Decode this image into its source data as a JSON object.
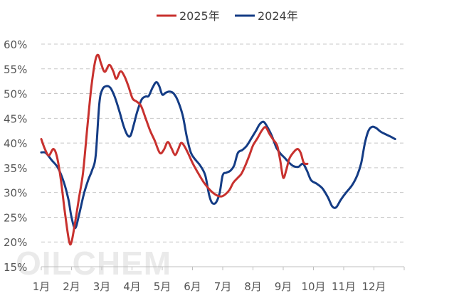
{
  "chart_data": {
    "type": "line",
    "title": "",
    "xlabel": "",
    "ylabel": "",
    "ylim": [
      15,
      60
    ],
    "y_tick_labels": [
      "15%",
      "20%",
      "25%",
      "30%",
      "35%",
      "40%",
      "45%",
      "50%",
      "55%",
      "60%"
    ],
    "categories": [
      "1月",
      "2月",
      "3月",
      "4月",
      "5月",
      "6月",
      "7月",
      "8月",
      "9月",
      "10月",
      "11月",
      "12月"
    ],
    "x_range": [
      0,
      12
    ],
    "grid": "horizontal dashed",
    "legend_position": "top-center",
    "watermark": "OILCHEM",
    "series": [
      {
        "name": "2025年",
        "color": "#C8312E",
        "points": [
          [
            0.0,
            40.8
          ],
          [
            0.12,
            38.8
          ],
          [
            0.25,
            37.5
          ],
          [
            0.4,
            38.8
          ],
          [
            0.52,
            37.2
          ],
          [
            0.65,
            32.5
          ],
          [
            0.78,
            26.0
          ],
          [
            0.92,
            20.2
          ],
          [
            1.0,
            20.0
          ],
          [
            1.12,
            24.0
          ],
          [
            1.25,
            29.0
          ],
          [
            1.38,
            34.0
          ],
          [
            1.52,
            43.0
          ],
          [
            1.65,
            51.0
          ],
          [
            1.78,
            56.5
          ],
          [
            1.88,
            57.8
          ],
          [
            1.98,
            56.0
          ],
          [
            2.1,
            54.4
          ],
          [
            2.25,
            55.8
          ],
          [
            2.38,
            54.5
          ],
          [
            2.48,
            53.0
          ],
          [
            2.62,
            54.5
          ],
          [
            2.75,
            53.5
          ],
          [
            2.88,
            51.5
          ],
          [
            3.02,
            49.0
          ],
          [
            3.15,
            48.4
          ],
          [
            3.3,
            47.5
          ],
          [
            3.45,
            45.0
          ],
          [
            3.6,
            42.5
          ],
          [
            3.75,
            40.5
          ],
          [
            3.92,
            38.0
          ],
          [
            4.05,
            38.6
          ],
          [
            4.18,
            40.2
          ],
          [
            4.3,
            39.0
          ],
          [
            4.42,
            37.6
          ],
          [
            4.52,
            38.6
          ],
          [
            4.62,
            40.0
          ],
          [
            4.72,
            39.5
          ],
          [
            4.85,
            38.0
          ],
          [
            5.0,
            36.0
          ],
          [
            5.18,
            34.0
          ],
          [
            5.38,
            32.0
          ],
          [
            5.58,
            30.5
          ],
          [
            5.78,
            29.5
          ],
          [
            5.95,
            29.2
          ],
          [
            6.08,
            29.6
          ],
          [
            6.22,
            30.5
          ],
          [
            6.35,
            32.0
          ],
          [
            6.5,
            33.0
          ],
          [
            6.62,
            33.8
          ],
          [
            6.75,
            35.5
          ],
          [
            6.88,
            37.5
          ],
          [
            7.0,
            39.5
          ],
          [
            7.15,
            41.0
          ],
          [
            7.3,
            42.6
          ],
          [
            7.42,
            43.2
          ],
          [
            7.55,
            41.8
          ],
          [
            7.68,
            40.6
          ],
          [
            7.8,
            39.5
          ],
          [
            7.9,
            36.5
          ],
          [
            8.0,
            33.0
          ],
          [
            8.1,
            34.5
          ],
          [
            8.2,
            36.8
          ],
          [
            8.35,
            38.2
          ],
          [
            8.48,
            38.8
          ],
          [
            8.58,
            38.0
          ],
          [
            8.68,
            36.0
          ],
          [
            8.8,
            35.8
          ]
        ]
      },
      {
        "name": "2024年",
        "color": "#143C85",
        "points": [
          [
            0.0,
            38.1
          ],
          [
            0.15,
            38.0
          ],
          [
            0.35,
            36.5
          ],
          [
            0.55,
            35.0
          ],
          [
            0.75,
            32.0
          ],
          [
            0.9,
            28.5
          ],
          [
            1.0,
            25.0
          ],
          [
            1.12,
            22.8
          ],
          [
            1.25,
            25.5
          ],
          [
            1.4,
            29.5
          ],
          [
            1.55,
            32.5
          ],
          [
            1.68,
            34.5
          ],
          [
            1.8,
            37.5
          ],
          [
            1.92,
            48.0
          ],
          [
            2.02,
            50.8
          ],
          [
            2.15,
            51.5
          ],
          [
            2.28,
            51.2
          ],
          [
            2.42,
            49.5
          ],
          [
            2.58,
            46.5
          ],
          [
            2.72,
            43.5
          ],
          [
            2.85,
            41.6
          ],
          [
            2.95,
            41.5
          ],
          [
            3.05,
            43.5
          ],
          [
            3.18,
            46.5
          ],
          [
            3.32,
            48.8
          ],
          [
            3.45,
            49.4
          ],
          [
            3.55,
            49.5
          ],
          [
            3.68,
            51.2
          ],
          [
            3.8,
            52.3
          ],
          [
            3.9,
            51.5
          ],
          [
            4.0,
            49.8
          ],
          [
            4.12,
            50.2
          ],
          [
            4.25,
            50.4
          ],
          [
            4.38,
            50.0
          ],
          [
            4.52,
            48.5
          ],
          [
            4.68,
            45.5
          ],
          [
            4.82,
            41.0
          ],
          [
            4.95,
            38.0
          ],
          [
            5.1,
            36.6
          ],
          [
            5.25,
            35.5
          ],
          [
            5.42,
            33.5
          ],
          [
            5.55,
            29.5
          ],
          [
            5.65,
            27.9
          ],
          [
            5.78,
            28.0
          ],
          [
            5.9,
            30.0
          ],
          [
            6.0,
            33.5
          ],
          [
            6.12,
            34.0
          ],
          [
            6.25,
            34.4
          ],
          [
            6.38,
            35.5
          ],
          [
            6.5,
            38.0
          ],
          [
            6.65,
            38.6
          ],
          [
            6.8,
            39.5
          ],
          [
            6.95,
            41.0
          ],
          [
            7.1,
            42.5
          ],
          [
            7.22,
            43.8
          ],
          [
            7.35,
            44.3
          ],
          [
            7.48,
            43.2
          ],
          [
            7.62,
            41.5
          ],
          [
            7.78,
            39.0
          ],
          [
            7.92,
            37.8
          ],
          [
            8.05,
            37.0
          ],
          [
            8.2,
            36.0
          ],
          [
            8.35,
            35.3
          ],
          [
            8.5,
            35.2
          ],
          [
            8.65,
            35.8
          ],
          [
            8.78,
            34.5
          ],
          [
            8.92,
            32.5
          ],
          [
            9.1,
            31.8
          ],
          [
            9.3,
            30.8
          ],
          [
            9.48,
            29.0
          ],
          [
            9.62,
            27.2
          ],
          [
            9.75,
            27.0
          ],
          [
            9.9,
            28.5
          ],
          [
            10.08,
            30.0
          ],
          [
            10.28,
            31.5
          ],
          [
            10.45,
            33.5
          ],
          [
            10.58,
            36.0
          ],
          [
            10.7,
            40.0
          ],
          [
            10.82,
            42.5
          ],
          [
            10.95,
            43.3
          ],
          [
            11.08,
            43.0
          ],
          [
            11.22,
            42.3
          ],
          [
            11.38,
            41.8
          ],
          [
            11.55,
            41.3
          ],
          [
            11.7,
            40.8
          ]
        ]
      }
    ]
  }
}
